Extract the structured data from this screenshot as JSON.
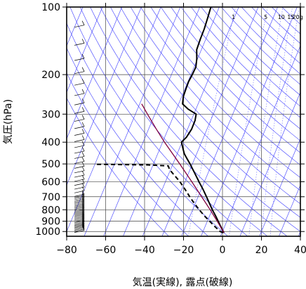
{
  "chart_data": {
    "type": "line",
    "title": "",
    "xlabel": "気温(実線), 露点(破線)",
    "ylabel": "気圧(hPa)",
    "xlim": [
      -80,
      40
    ],
    "ylim": [
      1050,
      100
    ],
    "y_scale": "log",
    "x_ticks": [
      "−80",
      "−60",
      "−40",
      "−20",
      "0",
      "20",
      "40"
    ],
    "x_tick_values": [
      -80,
      -60,
      -40,
      -20,
      0,
      20,
      40
    ],
    "y_ticks": [
      "100",
      "200",
      "300",
      "400",
      "500",
      "600",
      "700",
      "800",
      "900",
      "1000"
    ],
    "y_tick_values": [
      100,
      200,
      300,
      400,
      500,
      600,
      700,
      800,
      900,
      1000
    ],
    "grid": true,
    "mixing_ratio_labels": [
      {
        "text": "1",
        "value": 1
      },
      {
        "text": "5",
        "value": 5
      },
      {
        "text": "10",
        "value": 10
      },
      {
        "text": "15",
        "value": 15
      },
      {
        "text": "20g",
        "value": 20
      }
    ],
    "series": [
      {
        "role": "temperature",
        "line_style": "solid",
        "color": "#000000",
        "points": [
          {
            "p": 1012,
            "t": 1.0
          },
          {
            "p": 1000,
            "t": 0.4
          },
          {
            "p": 950,
            "t": -2.0
          },
          {
            "p": 900,
            "t": -4.4
          },
          {
            "p": 850,
            "t": -7.0
          },
          {
            "p": 800,
            "t": -9.9
          },
          {
            "p": 750,
            "t": -12.7
          },
          {
            "p": 700,
            "t": -15.7
          },
          {
            "p": 650,
            "t": -19.0
          },
          {
            "p": 600,
            "t": -22.8
          },
          {
            "p": 550,
            "t": -26.8
          },
          {
            "p": 500,
            "t": -31.2
          },
          {
            "p": 470,
            "t": -34.3
          },
          {
            "p": 450,
            "t": -36.4
          },
          {
            "p": 420,
            "t": -38.7
          },
          {
            "p": 400,
            "t": -40.3
          },
          {
            "p": 380,
            "t": -38.8
          },
          {
            "p": 350,
            "t": -37.9
          },
          {
            "p": 320,
            "t": -38.0
          },
          {
            "p": 300,
            "t": -38.8
          },
          {
            "p": 285,
            "t": -44.0
          },
          {
            "p": 270,
            "t": -48.0
          },
          {
            "p": 250,
            "t": -49.2
          },
          {
            "p": 230,
            "t": -49.5
          },
          {
            "p": 215,
            "t": -49.7
          },
          {
            "p": 200,
            "t": -49.3
          },
          {
            "p": 185,
            "t": -49.1
          },
          {
            "p": 170,
            "t": -50.4
          },
          {
            "p": 155,
            "t": -52.4
          },
          {
            "p": 140,
            "t": -52.8
          },
          {
            "p": 125,
            "t": -53.0
          },
          {
            "p": 112,
            "t": -53.6
          },
          {
            "p": 100,
            "t": -54.3
          }
        ]
      },
      {
        "role": "dew_point",
        "line_style": "dashed",
        "color": "#000000",
        "points": [
          {
            "p": 1012,
            "t": 0.6
          },
          {
            "p": 1000,
            "t": -1.2
          },
          {
            "p": 950,
            "t": -5.0
          },
          {
            "p": 900,
            "t": -8.8
          },
          {
            "p": 850,
            "t": -12.8
          },
          {
            "p": 800,
            "t": -16.6
          },
          {
            "p": 750,
            "t": -20.5
          },
          {
            "p": 700,
            "t": -24.3
          },
          {
            "p": 650,
            "t": -28.2
          },
          {
            "p": 600,
            "t": -32.6
          },
          {
            "p": 560,
            "t": -37.0
          },
          {
            "p": 530,
            "t": -40.5
          },
          {
            "p": 510,
            "t": -42.0
          },
          {
            "p": 505,
            "t": -53.0
          },
          {
            "p": 503,
            "t": -70.0
          },
          {
            "p": 502,
            "t": -79.0
          }
        ]
      },
      {
        "role": "parcel",
        "line_style": "solid",
        "color": "#800040",
        "points": [
          {
            "p": 1012,
            "t": 1.0
          },
          {
            "p": 1000,
            "t": 0.4
          },
          {
            "p": 900,
            "t": -4.9
          },
          {
            "p": 800,
            "t": -11.0
          },
          {
            "p": 700,
            "t": -18.2
          },
          {
            "p": 600,
            "t": -26.5
          },
          {
            "p": 500,
            "t": -36.5
          },
          {
            "p": 400,
            "t": -49.0
          },
          {
            "p": 350,
            "t": -56.0
          },
          {
            "p": 300,
            "t": -63.8
          },
          {
            "p": 270,
            "t": -69.0
          }
        ]
      }
    ],
    "wind_barbs_column": {
      "x": -76,
      "description": "wind barbs along left edge"
    }
  }
}
